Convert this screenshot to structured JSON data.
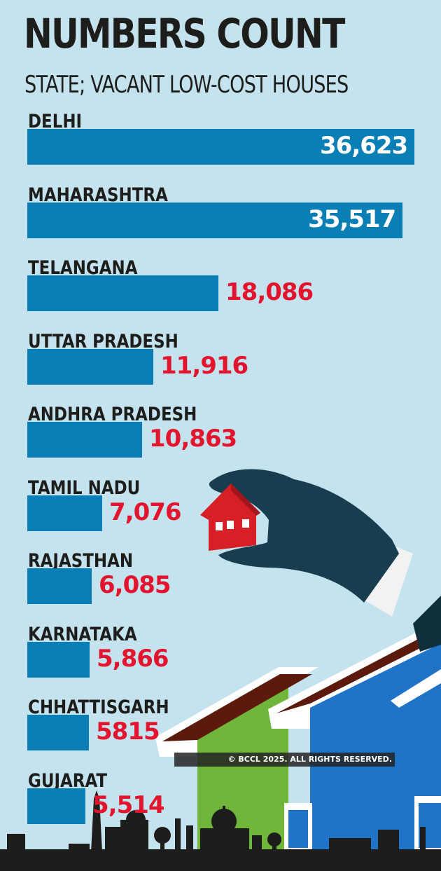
{
  "header": {
    "title": "NUMBERS COUNT",
    "subtitle": "STATE; VACANT LOW-COST HOUSES"
  },
  "chart_data": {
    "type": "bar",
    "orientation": "horizontal",
    "title": "NUMBERS COUNT",
    "subtitle": "STATE; VACANT LOW-COST HOUSES",
    "categories": [
      "DELHI",
      "MAHARASHTRA",
      "TELANGANA",
      "UTTAR PRADESH",
      "ANDHRA PRADESH",
      "TAMIL NADU",
      "RAJASTHAN",
      "KARNATAKA",
      "CHHATTISGARH",
      "GUJARAT"
    ],
    "values": [
      36623,
      35517,
      18086,
      11916,
      10863,
      7076,
      6085,
      5866,
      5815,
      5514
    ],
    "value_labels": [
      "36,623",
      "35,517",
      "18,086",
      "11,916",
      "10,863",
      "7,076",
      "6,085",
      "5,866",
      "5815",
      "5,514"
    ],
    "xlim": [
      0,
      36623
    ],
    "grid": false,
    "colors": {
      "bar": "#0a7fb6",
      "label_inside": "#ffffff",
      "label_outside": "#e3142d",
      "background": "#c5e3ef",
      "text": "#1d1d1b"
    }
  },
  "footer": {
    "copyright": "© BCCL 2025. ALL RIGHTS RESERVED."
  },
  "illustration": {
    "icons": [
      "gloved-hand-icon",
      "red-house-icon",
      "house-roofs-icon",
      "city-skyline-icon"
    ]
  }
}
